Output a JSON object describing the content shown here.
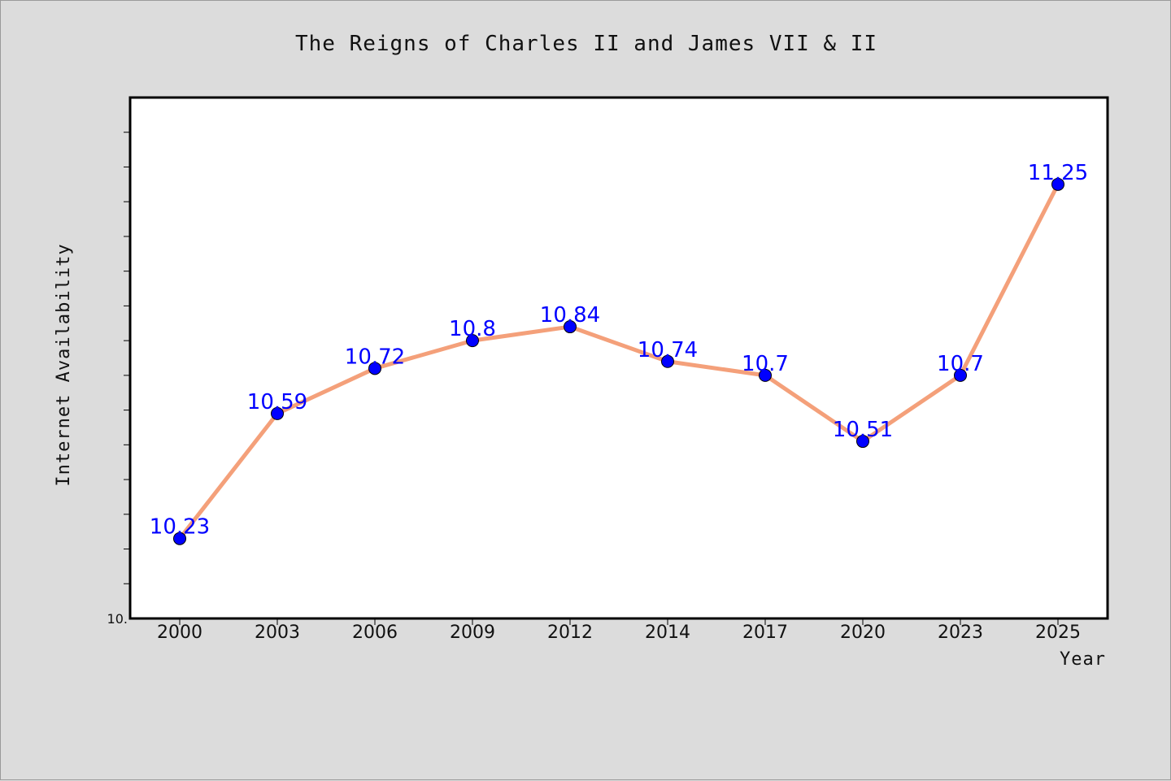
{
  "chart_data": {
    "type": "line",
    "title": "The Reigns of Charles II and James VII & II",
    "xlabel": "Year",
    "ylabel": "Internet Availability",
    "categories": [
      "2000",
      "2003",
      "2006",
      "2009",
      "2012",
      "2014",
      "2017",
      "2020",
      "2023",
      "2025"
    ],
    "series": [
      {
        "values": [
          10.23,
          10.59,
          10.72,
          10.8,
          10.84,
          10.74,
          10.7,
          10.51,
          10.7,
          11.25
        ]
      }
    ],
    "data_labels": [
      "10.23",
      "10.59",
      "10.72",
      "10.8",
      "10.84",
      "10.74",
      "10.7",
      "10.51",
      "10.7",
      "11.25"
    ],
    "y_tick_labels": [
      "10."
    ],
    "ylim": [
      10.0,
      11.5
    ],
    "grid": false,
    "colors": {
      "line": "#f4a07a",
      "marker": "#0000ff",
      "data_label": "#0000ff",
      "background": "#dcdcdc",
      "plot_background": "#ffffff"
    }
  }
}
